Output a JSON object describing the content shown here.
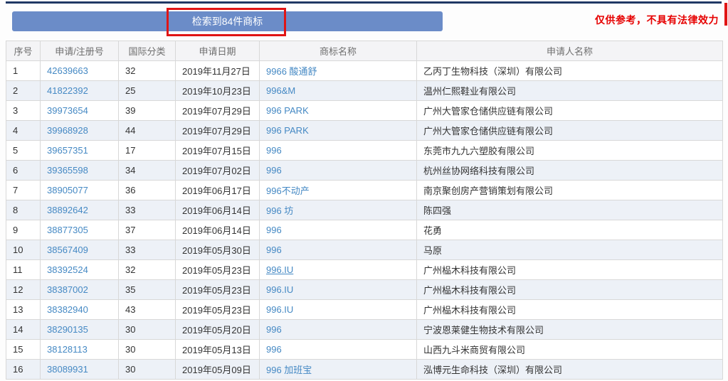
{
  "banner": {
    "label": "检索到84件商标"
  },
  "disclaimer": {
    "text": "仅供参考，不具有法律效力"
  },
  "table": {
    "columns": {
      "serial": "序号",
      "reg_no": "申请/注册号",
      "intl_class": "国际分类",
      "date": "申请日期",
      "trademark": "商标名称",
      "applicant": "申请人名称"
    },
    "rows": [
      {
        "no": "1",
        "reg_no": "42639663",
        "intl_class": "32",
        "date": "2019年11月27日",
        "name": "9966 酸通舒",
        "applicant": "乙丙丁生物科技（深圳）有限公司",
        "underlined": false
      },
      {
        "no": "2",
        "reg_no": "41822392",
        "intl_class": "25",
        "date": "2019年10月23日",
        "name": "996&M",
        "applicant": "温州仁熙鞋业有限公司",
        "underlined": false
      },
      {
        "no": "3",
        "reg_no": "39973654",
        "intl_class": "39",
        "date": "2019年07月29日",
        "name": "996 PARK",
        "applicant": "广州大管家仓储供应链有限公司",
        "underlined": false
      },
      {
        "no": "4",
        "reg_no": "39968928",
        "intl_class": "44",
        "date": "2019年07月29日",
        "name": "996 PARK",
        "applicant": "广州大管家仓储供应链有限公司",
        "underlined": false
      },
      {
        "no": "5",
        "reg_no": "39657351",
        "intl_class": "17",
        "date": "2019年07月15日",
        "name": "996",
        "applicant": "东莞市九九六塑胶有限公司",
        "underlined": false
      },
      {
        "no": "6",
        "reg_no": "39365598",
        "intl_class": "34",
        "date": "2019年07月02日",
        "name": "996",
        "applicant": "杭州丝协网络科技有限公司",
        "underlined": false
      },
      {
        "no": "7",
        "reg_no": "38905077",
        "intl_class": "36",
        "date": "2019年06月17日",
        "name": "996不动产",
        "applicant": "南京聚创房产营销策划有限公司",
        "underlined": false
      },
      {
        "no": "8",
        "reg_no": "38892642",
        "intl_class": "33",
        "date": "2019年06月14日",
        "name": "996 坊",
        "applicant": "陈四强",
        "underlined": false
      },
      {
        "no": "9",
        "reg_no": "38877305",
        "intl_class": "37",
        "date": "2019年06月14日",
        "name": "996",
        "applicant": "花勇",
        "underlined": false
      },
      {
        "no": "10",
        "reg_no": "38567409",
        "intl_class": "33",
        "date": "2019年05月30日",
        "name": "996",
        "applicant": "马原",
        "underlined": false
      },
      {
        "no": "11",
        "reg_no": "38392524",
        "intl_class": "32",
        "date": "2019年05月23日",
        "name": "996.IU",
        "applicant": "广州榀木科技有限公司",
        "underlined": true
      },
      {
        "no": "12",
        "reg_no": "38387002",
        "intl_class": "35",
        "date": "2019年05月23日",
        "name": "996.IU",
        "applicant": "广州榀木科技有限公司",
        "underlined": false
      },
      {
        "no": "13",
        "reg_no": "38382940",
        "intl_class": "43",
        "date": "2019年05月23日",
        "name": "996.IU",
        "applicant": "广州榀木科技有限公司",
        "underlined": false
      },
      {
        "no": "14",
        "reg_no": "38290135",
        "intl_class": "30",
        "date": "2019年05月20日",
        "name": "996",
        "applicant": "宁波恩莱健生物技术有限公司",
        "underlined": false
      },
      {
        "no": "15",
        "reg_no": "38128113",
        "intl_class": "30",
        "date": "2019年05月13日",
        "name": "996",
        "applicant": "山西九斗米商贸有限公司",
        "underlined": false
      },
      {
        "no": "16",
        "reg_no": "38089931",
        "intl_class": "30",
        "date": "2019年05月09日",
        "name": "996 加班宝",
        "applicant": "泓博元生命科技（深圳）有限公司",
        "underlined": false
      }
    ]
  },
  "colors": {
    "banner_blue": "#6b8cc8",
    "navy_strip": "#1f3864",
    "annotation_red": "#e01515",
    "disclaimer_red": "#e60000",
    "link_blue": "#4589c4",
    "alt_row_bg": "#edf1f7"
  }
}
